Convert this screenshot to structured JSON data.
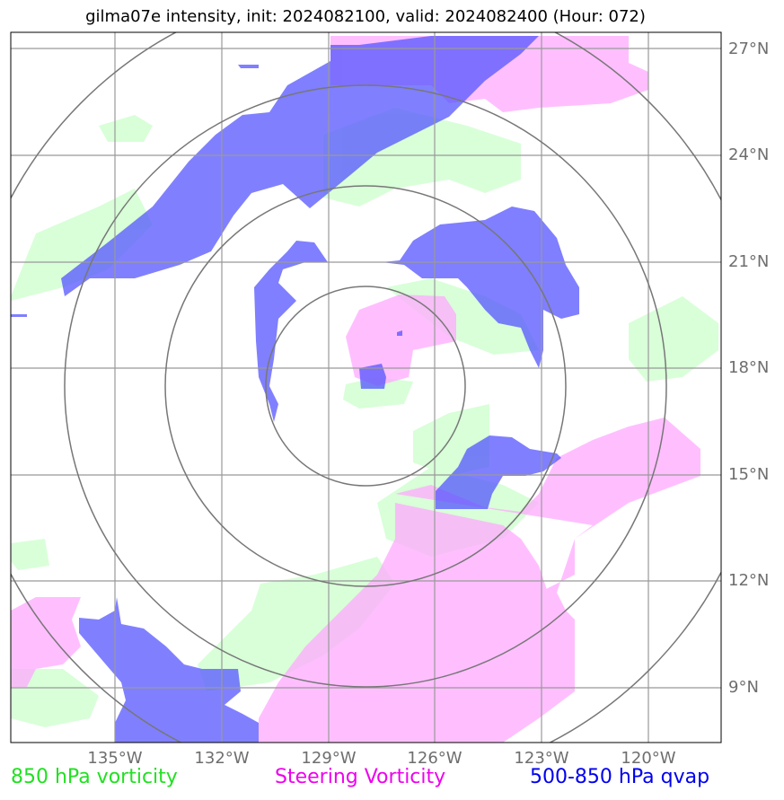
{
  "title": "gilma07e intensity, init: 2024082100, valid: 2024082400 (Hour: 072)",
  "lat_labels": [
    "27°N",
    "24°N",
    "21°N",
    "18°N",
    "15°N",
    "12°N",
    "9°N"
  ],
  "lon_labels": [
    "135°W",
    "132°W",
    "129°W",
    "126°W",
    "123°W",
    "120°W"
  ],
  "legend": {
    "vorticity_label": "850 hPa vorticity",
    "steering_label": "Steering Vorticity",
    "qvap_label": "500-850 hPa qvap"
  },
  "colors": {
    "vorticity": "#ccffcc",
    "steering": "#ffaaff",
    "qvap": "#5555ff",
    "grid": "#999999",
    "rings": "#777777",
    "legend_vorticity": "#22e022",
    "legend_steering": "#ee00ee",
    "legend_qvap": "#0000ee"
  }
}
